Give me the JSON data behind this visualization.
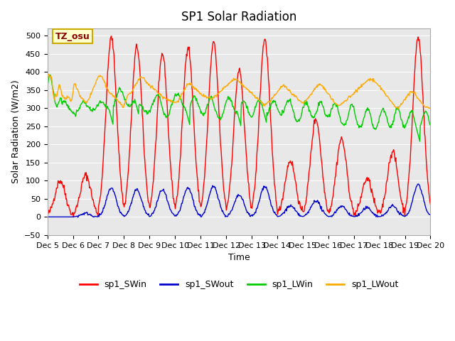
{
  "title": "SP1 Solar Radiation",
  "xlabel": "Time",
  "ylabel": "Solar Radiation (W/m2)",
  "ylim": [
    -50,
    520
  ],
  "xlim": [
    0,
    15
  ],
  "background_color": "#ffffff",
  "plot_bg_color": "#e8e8e8",
  "colors": {
    "SWin": "#ff0000",
    "SWout": "#0000cc",
    "LWin": "#00cc00",
    "LWout": "#ffaa00"
  },
  "legend_labels": [
    "sp1_SWin",
    "sp1_SWout",
    "sp1_LWin",
    "sp1_LWout"
  ],
  "tz_label": "TZ_osu",
  "x_tick_labels": [
    "Dec 5",
    "Dec 6",
    "Dec 7",
    "Dec 8",
    "Dec 9",
    "Dec 10",
    "Dec 11",
    "Dec 12",
    "Dec 13",
    "Dec 14",
    "Dec 15",
    "Dec 16",
    "Dec 17",
    "Dec 18",
    "Dec 19",
    "Dec 20"
  ],
  "n_days": 15,
  "pts_per_day": 48,
  "sw_peaks": [
    100,
    115,
    495,
    470,
    450,
    470,
    480,
    405,
    490,
    155,
    270,
    215,
    105,
    180,
    495
  ],
  "sw_out_peaks": [
    0,
    10,
    80,
    75,
    75,
    80,
    85,
    60,
    85,
    30,
    45,
    30,
    25,
    30,
    90
  ]
}
